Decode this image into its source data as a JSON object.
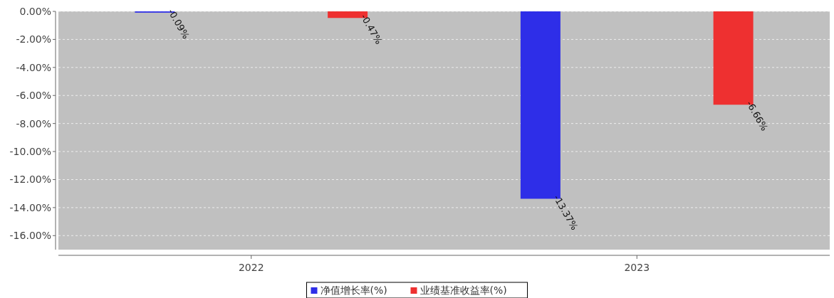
{
  "chart_data": {
    "type": "bar",
    "categories": [
      "2022",
      "2023"
    ],
    "series": [
      {
        "name": "净值增长率(%)",
        "color": "#2e2ee8",
        "values": [
          -0.09,
          -13.37
        ],
        "value_labels": [
          "-0.09%",
          "-13.37%"
        ]
      },
      {
        "name": "业绩基准收益率(%)",
        "color": "#ee3030",
        "values": [
          -0.47,
          -6.66
        ],
        "value_labels": [
          "-0.47%",
          "-6.66%"
        ]
      }
    ],
    "ylim": [
      -17,
      0
    ],
    "yticks": [
      {
        "value": 0,
        "label": "0.00%"
      },
      {
        "value": -2,
        "label": "-2.00%"
      },
      {
        "value": -4,
        "label": "-4.00%"
      },
      {
        "value": -6,
        "label": "-6.00%"
      },
      {
        "value": -8,
        "label": "-8.00%"
      },
      {
        "value": -10,
        "label": "-10.00%"
      },
      {
        "value": -12,
        "label": "-12.00%"
      },
      {
        "value": -14,
        "label": "-14.00%"
      },
      {
        "value": -16,
        "label": "-16.00%"
      }
    ],
    "grid": "y",
    "legend": "bottom"
  }
}
